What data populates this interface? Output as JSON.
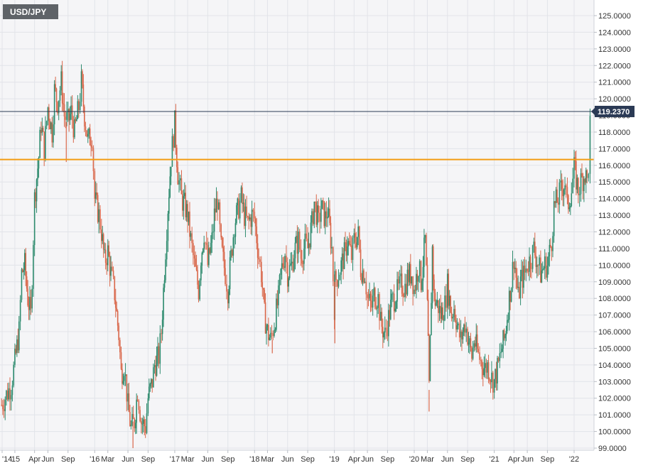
{
  "chart_data": {
    "type": "candlestick",
    "symbol": "USD/JPY",
    "y_axis": {
      "min": 99.0,
      "max": 125.0,
      "ticks": [
        "125.0000",
        "124.0000",
        "123.0000",
        "122.0000",
        "121.0000",
        "120.0000",
        "119.0000",
        "118.0000",
        "117.0000",
        "116.0000",
        "115.0000",
        "114.0000",
        "113.0000",
        "112.0000",
        "111.0000",
        "110.0000",
        "109.0000",
        "108.0000",
        "107.0000",
        "106.0000",
        "105.0000",
        "104.0000",
        "103.0000",
        "102.0000",
        "101.0000",
        "100.0000",
        "99.0000"
      ],
      "position": "right"
    },
    "x_axis": {
      "start": "2014-11",
      "end": "2022-03",
      "ticks": [
        {
          "label": "'14",
          "date": "2014-11"
        },
        {
          "label": "'15",
          "date": "2015-01"
        },
        {
          "label": "Apr",
          "date": "2015-04"
        },
        {
          "label": "Jun",
          "date": "2015-06"
        },
        {
          "label": "Sep",
          "date": "2015-09"
        },
        {
          "label": "'16",
          "date": "2016-01"
        },
        {
          "label": "Mar",
          "date": "2016-03"
        },
        {
          "label": "Jun",
          "date": "2016-06"
        },
        {
          "label": "Sep",
          "date": "2016-09"
        },
        {
          "label": "'17",
          "date": "2017-01"
        },
        {
          "label": "Mar",
          "date": "2017-03"
        },
        {
          "label": "Jun",
          "date": "2017-06"
        },
        {
          "label": "Sep",
          "date": "2017-09"
        },
        {
          "label": "'18",
          "date": "2018-01"
        },
        {
          "label": "Mar",
          "date": "2018-03"
        },
        {
          "label": "Jun",
          "date": "2018-06"
        },
        {
          "label": "Sep",
          "date": "2018-09"
        },
        {
          "label": "'19",
          "date": "2019-01"
        },
        {
          "label": "Apr",
          "date": "2019-04"
        },
        {
          "label": "Jun",
          "date": "2019-06"
        },
        {
          "label": "Sep",
          "date": "2019-09"
        },
        {
          "label": "'20",
          "date": "2020-01"
        },
        {
          "label": "Mar",
          "date": "2020-03"
        },
        {
          "label": "Jun",
          "date": "2020-06"
        },
        {
          "label": "Sep",
          "date": "2020-09"
        },
        {
          "label": "'21",
          "date": "2021-01"
        },
        {
          "label": "Apr",
          "date": "2021-04"
        },
        {
          "label": "Jun",
          "date": "2021-06"
        },
        {
          "label": "Sep",
          "date": "2021-09"
        },
        {
          "label": "'22",
          "date": "2022-01"
        }
      ]
    },
    "last_price": {
      "value": 119.237,
      "label": "119.2370"
    },
    "horizontal_lines": [
      {
        "value": 119.237,
        "color": "#2b3a55"
      },
      {
        "value": 116.35,
        "color": "#f39c12"
      }
    ],
    "series_path": [
      [
        "2014-11-01",
        101.6
      ],
      [
        "2014-12-15",
        102.8
      ],
      [
        "2015-01-01",
        104.2
      ],
      [
        "2015-01-20",
        106.0
      ],
      [
        "2015-02-01",
        109.5
      ],
      [
        "2015-02-15",
        110.0
      ],
      [
        "2015-03-01",
        108.0
      ],
      [
        "2015-03-15",
        107.0
      ],
      [
        "2015-04-01",
        114.0
      ],
      [
        "2015-04-20",
        116.5
      ],
      [
        "2015-05-01",
        118.5
      ],
      [
        "2015-05-15",
        117.0
      ],
      [
        "2015-06-01",
        119.5
      ],
      [
        "2015-06-20",
        118.0
      ],
      [
        "2015-07-01",
        120.5
      ],
      [
        "2015-07-15",
        119.8
      ],
      [
        "2015-08-01",
        121.0
      ],
      [
        "2015-08-15",
        119.0
      ],
      [
        "2015-09-01",
        118.6
      ],
      [
        "2015-09-15",
        119.2
      ],
      [
        "2015-10-01",
        118.0
      ],
      [
        "2015-10-20",
        119.5
      ],
      [
        "2015-11-01",
        121.0
      ],
      [
        "2015-11-15",
        119.0
      ],
      [
        "2015-12-01",
        117.5
      ],
      [
        "2015-12-20",
        117.8
      ],
      [
        "2016-01-01",
        114.0
      ],
      [
        "2016-01-20",
        113.0
      ],
      [
        "2016-02-01",
        112.0
      ],
      [
        "2016-02-15",
        110.2
      ],
      [
        "2016-03-01",
        110.8
      ],
      [
        "2016-03-15",
        109.5
      ],
      [
        "2016-04-01",
        108.3
      ],
      [
        "2016-04-20",
        105.8
      ],
      [
        "2016-05-01",
        103.5
      ],
      [
        "2016-05-15",
        104.0
      ],
      [
        "2016-06-01",
        101.5
      ],
      [
        "2016-06-15",
        100.2
      ],
      [
        "2016-07-01",
        100.6
      ],
      [
        "2016-07-15",
        102.5
      ],
      [
        "2016-08-01",
        100.6
      ],
      [
        "2016-08-20",
        100.3
      ],
      [
        "2016-09-01",
        102.0
      ],
      [
        "2016-09-20",
        103.0
      ],
      [
        "2016-10-01",
        104.0
      ],
      [
        "2016-10-20",
        104.5
      ],
      [
        "2016-11-01",
        106.0
      ],
      [
        "2016-11-20",
        111.0
      ],
      [
        "2016-12-01",
        113.5
      ],
      [
        "2016-12-15",
        116.5
      ],
      [
        "2017-01-01",
        118.5
      ],
      [
        "2017-01-15",
        115.5
      ],
      [
        "2017-02-01",
        114.0
      ],
      [
        "2017-02-15",
        113.6
      ],
      [
        "2017-03-01",
        113.0
      ],
      [
        "2017-03-15",
        111.5
      ],
      [
        "2017-04-01",
        110.0
      ],
      [
        "2017-04-20",
        108.5
      ],
      [
        "2017-05-01",
        110.5
      ],
      [
        "2017-05-15",
        112.0
      ],
      [
        "2017-06-01",
        110.0
      ],
      [
        "2017-06-20",
        111.5
      ],
      [
        "2017-07-01",
        113.0
      ],
      [
        "2017-07-15",
        114.0
      ],
      [
        "2017-08-01",
        111.0
      ],
      [
        "2017-08-20",
        109.5
      ],
      [
        "2017-09-01",
        108.5
      ],
      [
        "2017-09-15",
        110.5
      ],
      [
        "2017-10-01",
        112.5
      ],
      [
        "2017-10-20",
        113.5
      ],
      [
        "2017-11-01",
        114.0
      ],
      [
        "2017-11-15",
        113.0
      ],
      [
        "2017-12-01",
        112.5
      ],
      [
        "2017-12-20",
        113.0
      ],
      [
        "2018-01-01",
        112.8
      ],
      [
        "2018-01-20",
        110.5
      ],
      [
        "2018-02-01",
        109.5
      ],
      [
        "2018-02-15",
        107.0
      ],
      [
        "2018-03-01",
        106.0
      ],
      [
        "2018-03-15",
        105.5
      ],
      [
        "2018-04-01",
        106.5
      ],
      [
        "2018-04-20",
        108.0
      ],
      [
        "2018-05-01",
        109.5
      ],
      [
        "2018-05-20",
        110.8
      ],
      [
        "2018-06-01",
        109.5
      ],
      [
        "2018-06-20",
        110.0
      ],
      [
        "2018-07-01",
        110.8
      ],
      [
        "2018-07-20",
        111.5
      ],
      [
        "2018-08-01",
        110.5
      ],
      [
        "2018-08-20",
        111.2
      ],
      [
        "2018-09-01",
        111.0
      ],
      [
        "2018-09-20",
        112.5
      ],
      [
        "2018-10-01",
        113.8
      ],
      [
        "2018-10-20",
        112.5
      ],
      [
        "2018-11-01",
        113.5
      ],
      [
        "2018-11-20",
        112.8
      ],
      [
        "2018-12-01",
        113.3
      ],
      [
        "2018-12-20",
        111.0
      ],
      [
        "2019-01-01",
        107.5
      ],
      [
        "2019-01-03",
        109.0
      ],
      [
        "2019-01-20",
        109.5
      ],
      [
        "2019-02-01",
        110.0
      ],
      [
        "2019-02-20",
        110.8
      ],
      [
        "2019-03-01",
        111.5
      ],
      [
        "2019-03-20",
        110.5
      ],
      [
        "2019-04-01",
        111.5
      ],
      [
        "2019-04-20",
        111.8
      ],
      [
        "2019-05-01",
        109.8
      ],
      [
        "2019-05-20",
        109.5
      ],
      [
        "2019-06-01",
        108.0
      ],
      [
        "2019-06-20",
        107.5
      ],
      [
        "2019-07-01",
        108.2
      ],
      [
        "2019-07-20",
        108.0
      ],
      [
        "2019-08-01",
        106.5
      ],
      [
        "2019-08-20",
        105.8
      ],
      [
        "2019-09-01",
        106.5
      ],
      [
        "2019-09-20",
        107.8
      ],
      [
        "2019-10-01",
        108.0
      ],
      [
        "2019-10-20",
        108.5
      ],
      [
        "2019-11-01",
        108.8
      ],
      [
        "2019-11-20",
        108.7
      ],
      [
        "2019-12-01",
        109.3
      ],
      [
        "2019-12-20",
        109.5
      ],
      [
        "2020-01-01",
        108.5
      ],
      [
        "2020-01-20",
        110.0
      ],
      [
        "2020-02-01",
        109.0
      ],
      [
        "2020-02-20",
        111.5
      ],
      [
        "2020-03-01",
        107.5
      ],
      [
        "2020-03-09",
        102.5
      ],
      [
        "2020-03-24",
        111.0
      ],
      [
        "2020-04-01",
        108.0
      ],
      [
        "2020-04-20",
        107.5
      ],
      [
        "2020-05-01",
        107.0
      ],
      [
        "2020-05-20",
        107.6
      ],
      [
        "2020-06-01",
        108.8
      ],
      [
        "2020-06-20",
        107.0
      ],
      [
        "2020-07-01",
        107.5
      ],
      [
        "2020-07-20",
        106.0
      ],
      [
        "2020-08-01",
        105.5
      ],
      [
        "2020-08-20",
        106.5
      ],
      [
        "2020-09-01",
        105.8
      ],
      [
        "2020-09-20",
        104.5
      ],
      [
        "2020-10-01",
        105.5
      ],
      [
        "2020-10-20",
        104.6
      ],
      [
        "2020-11-01",
        104.2
      ],
      [
        "2020-11-20",
        103.8
      ],
      [
        "2020-12-01",
        104.0
      ],
      [
        "2020-12-20",
        103.2
      ],
      [
        "2021-01-01",
        103.0
      ],
      [
        "2021-01-20",
        104.0
      ],
      [
        "2021-02-01",
        104.8
      ],
      [
        "2021-02-20",
        105.8
      ],
      [
        "2021-03-01",
        107.0
      ],
      [
        "2021-03-20",
        109.0
      ],
      [
        "2021-04-01",
        110.5
      ],
      [
        "2021-04-20",
        108.0
      ],
      [
        "2021-05-01",
        109.0
      ],
      [
        "2021-05-20",
        109.5
      ],
      [
        "2021-06-01",
        110.0
      ],
      [
        "2021-06-20",
        110.5
      ],
      [
        "2021-07-01",
        111.0
      ],
      [
        "2021-07-20",
        110.0
      ],
      [
        "2021-08-01",
        109.5
      ],
      [
        "2021-08-20",
        110.0
      ],
      [
        "2021-09-01",
        110.0
      ],
      [
        "2021-09-20",
        111.5
      ],
      [
        "2021-10-01",
        113.5
      ],
      [
        "2021-10-20",
        114.0
      ],
      [
        "2021-11-01",
        114.5
      ],
      [
        "2021-11-20",
        115.0
      ],
      [
        "2021-12-01",
        113.5
      ],
      [
        "2021-12-20",
        114.5
      ],
      [
        "2022-01-01",
        115.8
      ],
      [
        "2022-01-20",
        114.5
      ],
      [
        "2022-02-01",
        115.0
      ],
      [
        "2022-02-20",
        115.5
      ],
      [
        "2022-03-01",
        115.0
      ],
      [
        "2022-03-08",
        116.0
      ],
      [
        "2022-03-15",
        118.5
      ],
      [
        "2022-03-18",
        119.24
      ]
    ],
    "spikes": [
      {
        "date": "2015-08-24",
        "low": 116.2
      },
      {
        "date": "2016-06-24",
        "low": 99.0
      },
      {
        "date": "2019-01-03",
        "low": 105.3
      },
      {
        "date": "2020-03-09",
        "low": 101.2
      },
      {
        "date": "2018-03-23",
        "low": 104.7
      }
    ],
    "up_color": "#2e8b6e",
    "down_color": "#d9674a"
  }
}
